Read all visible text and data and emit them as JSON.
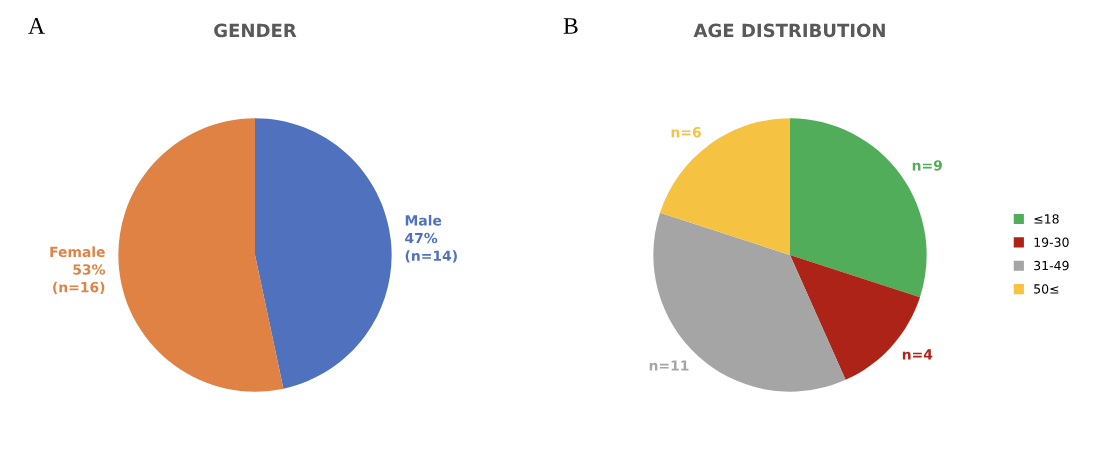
{
  "chart_data": [
    {
      "type": "pie",
      "title": "GENDER",
      "annotations": [
        "A"
      ],
      "categories": [
        "Male",
        "Female"
      ],
      "values": [
        14,
        16
      ],
      "colors": [
        "#4f71be",
        "#df8244"
      ],
      "value_labels": [
        "47%\n(n=14)",
        "53%\n(n=16)"
      ],
      "legend": false
    },
    {
      "type": "pie",
      "title": "AGE DISTRIBUTION",
      "annotations": [
        "B"
      ],
      "categories": [
        "≤18",
        "19-30",
        "31-49",
        "50≤"
      ],
      "values": [
        9,
        4,
        11,
        6
      ],
      "colors": [
        "#52ad5b",
        "#ad2318",
        "#a5a5a5",
        "#f5c242"
      ],
      "value_labels": [
        "n=9",
        "n=4",
        "n=11",
        "n=6"
      ],
      "legend": "right"
    }
  ]
}
